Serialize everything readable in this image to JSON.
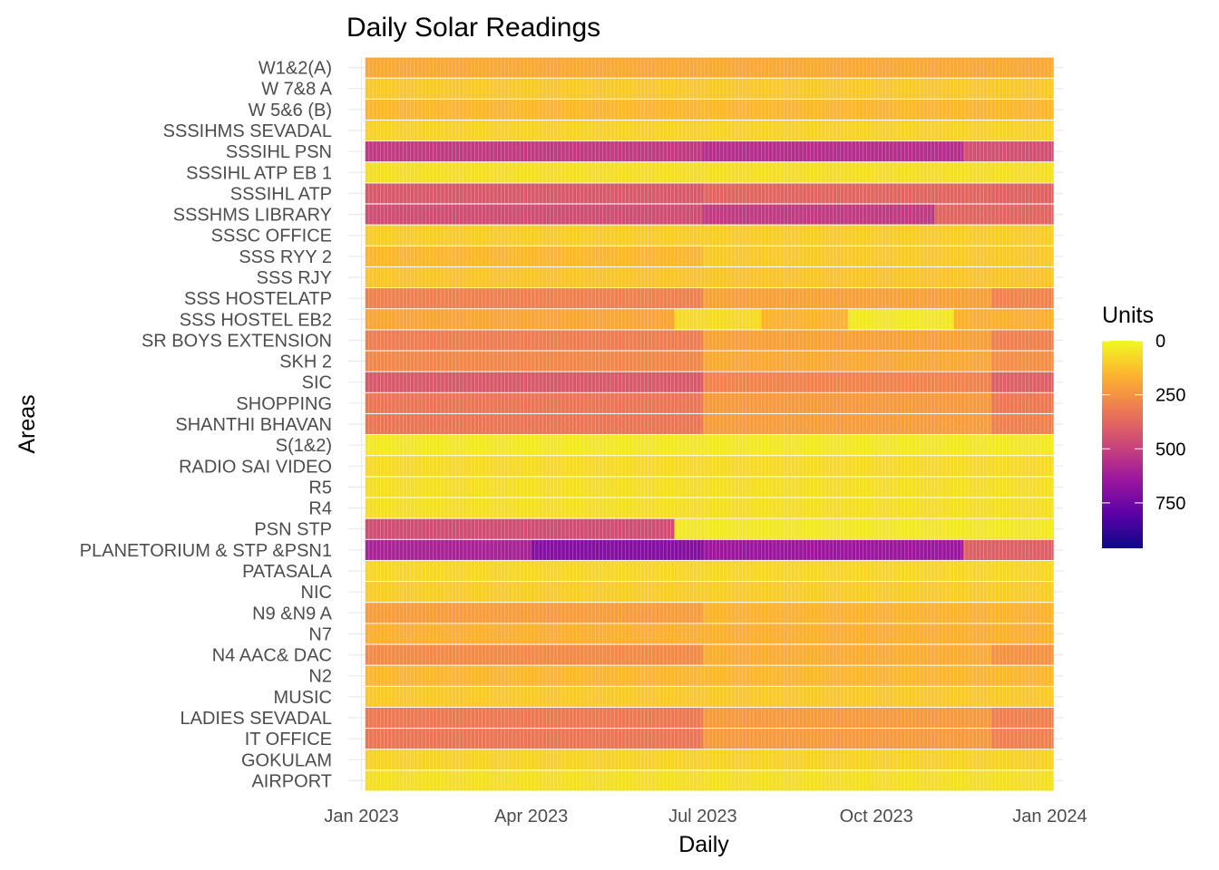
{
  "chart_data": {
    "type": "heatmap",
    "title": "Daily Solar Readings",
    "xlabel": "Daily",
    "ylabel": "Areas",
    "legend": {
      "title": "Units",
      "placement": "right",
      "ticks": [
        0,
        250,
        500,
        750
      ],
      "range": [
        0,
        960
      ],
      "colors": [
        "#F0F921",
        "#FDB32F",
        "#ED7953",
        "#CC4778",
        "#9C179E",
        "#5C01A6",
        "#0D0887"
      ]
    },
    "x_range": [
      "2022-12-25",
      "2024-01-08"
    ],
    "x_ticks": [
      {
        "date": "2023-01-01",
        "label": "Jan 2023"
      },
      {
        "date": "2023-04-01",
        "label": "Apr 2023"
      },
      {
        "date": "2023-07-01",
        "label": "Jul 2023"
      },
      {
        "date": "2023-10-01",
        "label": "Oct 2023"
      },
      {
        "date": "2024-01-01",
        "label": "Jan 2024"
      }
    ],
    "data_start": "2023-01-03",
    "data_end": "2024-01-02",
    "grid": true,
    "areas": [
      {
        "name": "AIRPORT",
        "periods": [
          {
            "from": "2023-01-03",
            "to": "2024-01-02",
            "value": 60
          }
        ]
      },
      {
        "name": "GOKULAM",
        "periods": [
          {
            "from": "2023-01-03",
            "to": "2024-01-02",
            "value": 90
          }
        ]
      },
      {
        "name": "IT OFFICE",
        "periods": [
          {
            "from": "2023-01-03",
            "to": "2023-06-30",
            "value": 330
          },
          {
            "from": "2023-07-01",
            "to": "2023-11-30",
            "value": 230
          },
          {
            "from": "2023-12-01",
            "to": "2024-01-02",
            "value": 300
          }
        ]
      },
      {
        "name": "LADIES SEVADAL",
        "periods": [
          {
            "from": "2023-01-03",
            "to": "2023-06-30",
            "value": 320
          },
          {
            "from": "2023-07-01",
            "to": "2023-11-30",
            "value": 230
          },
          {
            "from": "2023-12-01",
            "to": "2024-01-02",
            "value": 300
          }
        ]
      },
      {
        "name": "MUSIC",
        "periods": [
          {
            "from": "2023-01-03",
            "to": "2024-01-02",
            "value": 110
          }
        ]
      },
      {
        "name": "N2",
        "periods": [
          {
            "from": "2023-01-03",
            "to": "2024-01-02",
            "value": 150
          }
        ]
      },
      {
        "name": "N4 AAC& DAC",
        "periods": [
          {
            "from": "2023-01-03",
            "to": "2023-06-30",
            "value": 270
          },
          {
            "from": "2023-07-01",
            "to": "2023-11-30",
            "value": 180
          },
          {
            "from": "2023-12-01",
            "to": "2024-01-02",
            "value": 250
          }
        ]
      },
      {
        "name": "N7",
        "periods": [
          {
            "from": "2023-01-03",
            "to": "2024-01-02",
            "value": 170
          }
        ]
      },
      {
        "name": "N9 &N9 A",
        "periods": [
          {
            "from": "2023-01-03",
            "to": "2023-06-30",
            "value": 220
          },
          {
            "from": "2023-07-01",
            "to": "2024-01-02",
            "value": 160
          }
        ]
      },
      {
        "name": "NIC",
        "periods": [
          {
            "from": "2023-01-03",
            "to": "2024-01-02",
            "value": 100
          }
        ]
      },
      {
        "name": "PATASALA",
        "periods": [
          {
            "from": "2023-01-03",
            "to": "2024-01-02",
            "value": 80
          }
        ]
      },
      {
        "name": "PLANETORIUM & STP &PSN1",
        "periods": [
          {
            "from": "2023-01-03",
            "to": "2023-03-31",
            "value": 600
          },
          {
            "from": "2023-04-01",
            "to": "2023-06-30",
            "value": 700
          },
          {
            "from": "2023-07-01",
            "to": "2023-11-15",
            "value": 640
          },
          {
            "from": "2023-11-16",
            "to": "2024-01-02",
            "value": 400
          }
        ]
      },
      {
        "name": "PSN STP",
        "periods": [
          {
            "from": "2023-01-03",
            "to": "2023-06-15",
            "value": 460
          },
          {
            "from": "2023-06-16",
            "to": "2024-01-02",
            "value": 40
          }
        ]
      },
      {
        "name": "R4",
        "periods": [
          {
            "from": "2023-01-03",
            "to": "2024-01-02",
            "value": 60
          }
        ]
      },
      {
        "name": "R5",
        "periods": [
          {
            "from": "2023-01-03",
            "to": "2024-01-02",
            "value": 60
          }
        ]
      },
      {
        "name": "RADIO SAI VIDEO",
        "periods": [
          {
            "from": "2023-01-03",
            "to": "2024-01-02",
            "value": 70
          }
        ]
      },
      {
        "name": "S(1&2)",
        "periods": [
          {
            "from": "2023-01-03",
            "to": "2024-01-02",
            "value": 40
          }
        ]
      },
      {
        "name": "SHANTHI BHAVAN",
        "periods": [
          {
            "from": "2023-01-03",
            "to": "2023-06-30",
            "value": 330
          },
          {
            "from": "2023-07-01",
            "to": "2023-11-30",
            "value": 220
          },
          {
            "from": "2023-12-01",
            "to": "2024-01-02",
            "value": 300
          }
        ]
      },
      {
        "name": "SHOPPING",
        "periods": [
          {
            "from": "2023-01-03",
            "to": "2023-06-30",
            "value": 330
          },
          {
            "from": "2023-07-01",
            "to": "2023-11-30",
            "value": 230
          },
          {
            "from": "2023-12-01",
            "to": "2024-01-02",
            "value": 320
          }
        ]
      },
      {
        "name": "SIC",
        "periods": [
          {
            "from": "2023-01-03",
            "to": "2023-06-30",
            "value": 420
          },
          {
            "from": "2023-07-01",
            "to": "2023-11-30",
            "value": 290
          },
          {
            "from": "2023-12-01",
            "to": "2024-01-02",
            "value": 400
          }
        ]
      },
      {
        "name": "SKH 2",
        "periods": [
          {
            "from": "2023-01-03",
            "to": "2023-06-30",
            "value": 280
          },
          {
            "from": "2023-07-01",
            "to": "2023-11-30",
            "value": 190
          },
          {
            "from": "2023-12-01",
            "to": "2024-01-02",
            "value": 260
          }
        ]
      },
      {
        "name": "SR BOYS EXTENSION",
        "periods": [
          {
            "from": "2023-01-03",
            "to": "2023-06-30",
            "value": 310
          },
          {
            "from": "2023-07-01",
            "to": "2023-11-30",
            "value": 210
          },
          {
            "from": "2023-12-01",
            "to": "2024-01-02",
            "value": 300
          }
        ]
      },
      {
        "name": "SSS HOSTEL EB2",
        "periods": [
          {
            "from": "2023-01-03",
            "to": "2023-06-15",
            "value": 200
          },
          {
            "from": "2023-06-16",
            "to": "2023-07-31",
            "value": 70
          },
          {
            "from": "2023-08-01",
            "to": "2023-09-15",
            "value": 160
          },
          {
            "from": "2023-09-16",
            "to": "2023-11-10",
            "value": 40
          },
          {
            "from": "2023-11-11",
            "to": "2024-01-02",
            "value": 170
          }
        ]
      },
      {
        "name": "SSS HOSTELATP",
        "periods": [
          {
            "from": "2023-01-03",
            "to": "2023-06-30",
            "value": 300
          },
          {
            "from": "2023-07-01",
            "to": "2023-11-30",
            "value": 210
          },
          {
            "from": "2023-12-01",
            "to": "2024-01-02",
            "value": 290
          }
        ]
      },
      {
        "name": "SSS RJY",
        "periods": [
          {
            "from": "2023-01-03",
            "to": "2024-01-02",
            "value": 120
          }
        ]
      },
      {
        "name": "SSS RYY 2",
        "periods": [
          {
            "from": "2023-01-03",
            "to": "2023-06-30",
            "value": 150
          },
          {
            "from": "2023-07-01",
            "to": "2024-01-02",
            "value": 110
          }
        ]
      },
      {
        "name": "SSSC OFFICE",
        "periods": [
          {
            "from": "2023-01-03",
            "to": "2024-01-02",
            "value": 100
          }
        ]
      },
      {
        "name": "SSSHMS LIBRARY",
        "periods": [
          {
            "from": "2023-01-03",
            "to": "2023-06-30",
            "value": 460
          },
          {
            "from": "2023-07-01",
            "to": "2023-10-31",
            "value": 520
          },
          {
            "from": "2023-11-01",
            "to": "2024-01-02",
            "value": 380
          }
        ]
      },
      {
        "name": "SSSIHL ATP",
        "periods": [
          {
            "from": "2023-01-03",
            "to": "2023-06-30",
            "value": 420
          },
          {
            "from": "2023-07-01",
            "to": "2023-11-30",
            "value": 380
          },
          {
            "from": "2023-12-01",
            "to": "2024-01-02",
            "value": 390
          }
        ]
      },
      {
        "name": "SSSIHL ATP EB 1",
        "periods": [
          {
            "from": "2023-01-03",
            "to": "2024-01-02",
            "value": 60
          }
        ]
      },
      {
        "name": "SSSIHL PSN",
        "periods": [
          {
            "from": "2023-01-03",
            "to": "2023-06-30",
            "value": 520
          },
          {
            "from": "2023-07-01",
            "to": "2023-11-15",
            "value": 560
          },
          {
            "from": "2023-11-16",
            "to": "2024-01-02",
            "value": 450
          }
        ]
      },
      {
        "name": "SSSIHMS SEVADAL",
        "periods": [
          {
            "from": "2023-01-03",
            "to": "2024-01-02",
            "value": 90
          }
        ]
      },
      {
        "name": "W 5&6 (B)",
        "periods": [
          {
            "from": "2023-01-03",
            "to": "2024-01-02",
            "value": 150
          }
        ]
      },
      {
        "name": "W 7&8 A",
        "periods": [
          {
            "from": "2023-01-03",
            "to": "2024-01-02",
            "value": 110
          }
        ]
      },
      {
        "name": "W1&2(A)",
        "periods": [
          {
            "from": "2023-01-03",
            "to": "2024-01-02",
            "value": 190
          }
        ]
      }
    ]
  }
}
